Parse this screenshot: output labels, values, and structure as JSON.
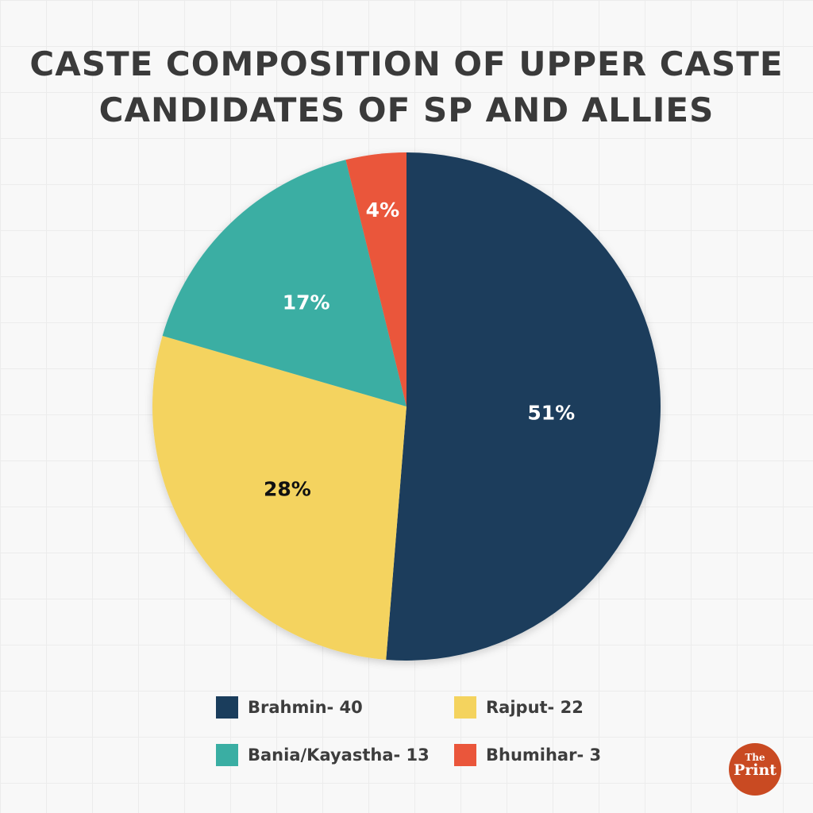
{
  "chart_data": {
    "type": "pie",
    "title": "CASTE COMPOSITION OF UPPER CASTE CANDIDATES OF SP AND ALLIES",
    "title_lines": [
      "CASTE COMPOSITION OF UPPER CASTE",
      "CANDIDATES OF SP AND ALLIES"
    ],
    "slices": [
      {
        "name": "Brahmin",
        "value": 40,
        "label": "51%",
        "legend": "Brahmin- 40",
        "color": "#1a3d5c",
        "label_color": "#ffffff"
      },
      {
        "name": "Rajput",
        "value": 22,
        "label": "28%",
        "legend": "Rajput- 22",
        "color": "#f4d35e",
        "label_color": "#111111"
      },
      {
        "name": "Bania/Kayastha",
        "value": 13,
        "label": "17%",
        "legend": "Bania/Kayastha- 13",
        "color": "#3aaea3",
        "label_color": "#ffffff"
      },
      {
        "name": "Bhumihar",
        "value": 3,
        "label": "4%",
        "legend": "Bhumihar- 3",
        "color": "#ea563b",
        "label_color": "#ffffff"
      }
    ],
    "start": "top",
    "direction": "clockwise",
    "legend_position": "bottom"
  },
  "logo": {
    "line1": "The",
    "line2": "Print",
    "color": "#c94a22"
  }
}
